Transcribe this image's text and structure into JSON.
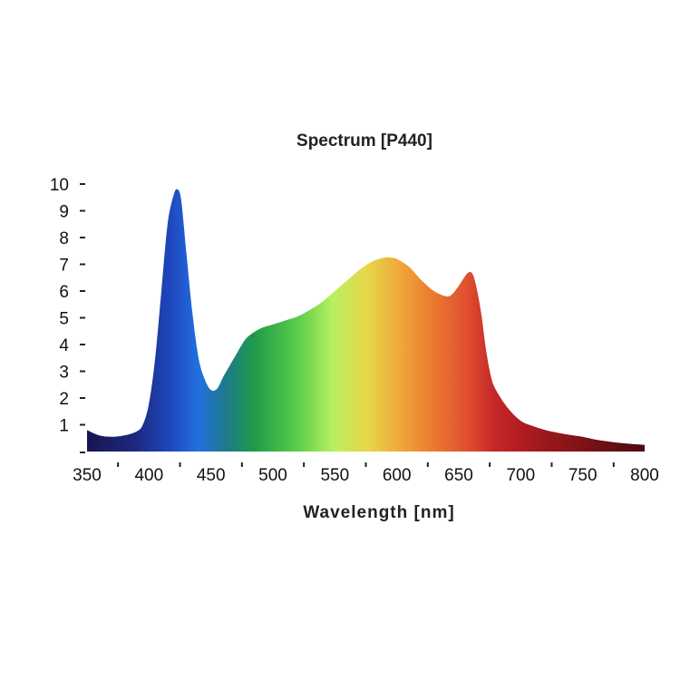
{
  "chart_data": {
    "type": "area",
    "title": "Spectrum [P440]",
    "xlabel": "Wavelength [nm]",
    "ylabel": "",
    "xlim": [
      350,
      800
    ],
    "ylim": [
      0,
      10
    ],
    "xticks": [
      "350",
      "400",
      "450",
      "500",
      "550",
      "600",
      "650",
      "700",
      "750",
      "800"
    ],
    "yticks": [
      "1",
      "2",
      "3",
      "4",
      "5",
      "6",
      "7",
      "8",
      "9",
      "10"
    ],
    "fill": "visible-spectrum gradient",
    "x": [
      350,
      360,
      370,
      380,
      390,
      395,
      400,
      405,
      410,
      415,
      420,
      423,
      426,
      430,
      435,
      440,
      445,
      450,
      455,
      460,
      465,
      470,
      475,
      480,
      490,
      500,
      510,
      520,
      530,
      540,
      550,
      560,
      570,
      580,
      590,
      595,
      600,
      610,
      620,
      630,
      640,
      645,
      650,
      655,
      658,
      661,
      664,
      668,
      672,
      676,
      680,
      690,
      700,
      710,
      720,
      730,
      740,
      750,
      760,
      770,
      780,
      790,
      800
    ],
    "y": [
      0.8,
      0.6,
      0.55,
      0.6,
      0.75,
      1.0,
      1.8,
      3.5,
      6.0,
      8.5,
      9.6,
      9.8,
      9.4,
      7.5,
      5.2,
      3.5,
      2.7,
      2.3,
      2.35,
      2.8,
      3.2,
      3.6,
      4.0,
      4.3,
      4.6,
      4.75,
      4.9,
      5.05,
      5.3,
      5.6,
      6.0,
      6.4,
      6.8,
      7.1,
      7.25,
      7.25,
      7.2,
      6.9,
      6.4,
      6.0,
      5.8,
      5.9,
      6.2,
      6.55,
      6.7,
      6.65,
      6.2,
      5.2,
      3.8,
      2.8,
      2.3,
      1.6,
      1.15,
      0.95,
      0.8,
      0.7,
      0.62,
      0.55,
      0.45,
      0.38,
      0.32,
      0.28,
      0.25
    ]
  }
}
